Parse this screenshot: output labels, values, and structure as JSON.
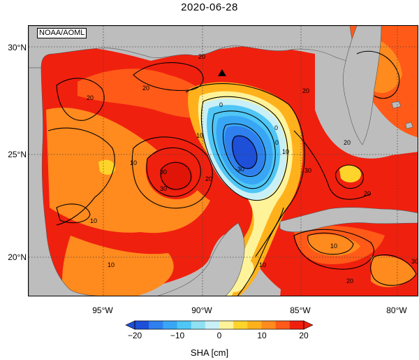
{
  "title": "2020-06-28",
  "credit": "NOAA/AOML",
  "lat_labels": [
    "30°N",
    "25°N",
    "20°N"
  ],
  "lon_labels": [
    "95°W",
    "90°W",
    "85°W",
    "80°W"
  ],
  "colorbar": {
    "ticks": [
      "−20",
      "−10",
      "0",
      "10",
      "20"
    ],
    "title": "SHA [cm]",
    "range": [
      -20,
      20
    ],
    "colors": [
      "#1e4fd8",
      "#2f7fee",
      "#39a6f5",
      "#4fc6f5",
      "#8ee0f2",
      "#c9f0f7",
      "#fff39a",
      "#ffd42a",
      "#ffb11c",
      "#ff8a1e",
      "#ff5a18",
      "#f0200e"
    ]
  },
  "contour_labels": [
    "20",
    "20",
    "20",
    "20",
    "20",
    "20",
    "20",
    "20",
    "10",
    "10",
    "10",
    "10",
    "10",
    "10",
    "10",
    "0",
    "0",
    "0",
    "30",
    "30",
    "30",
    "30",
    "-30"
  ],
  "marker": "triangle-marker",
  "colors": {
    "land": "#bdbdbd",
    "ocean_high": "#f0200e",
    "ocean_mid": "#ff5a18",
    "loop_negative": "#1e4fd8",
    "grid": "#555555"
  }
}
